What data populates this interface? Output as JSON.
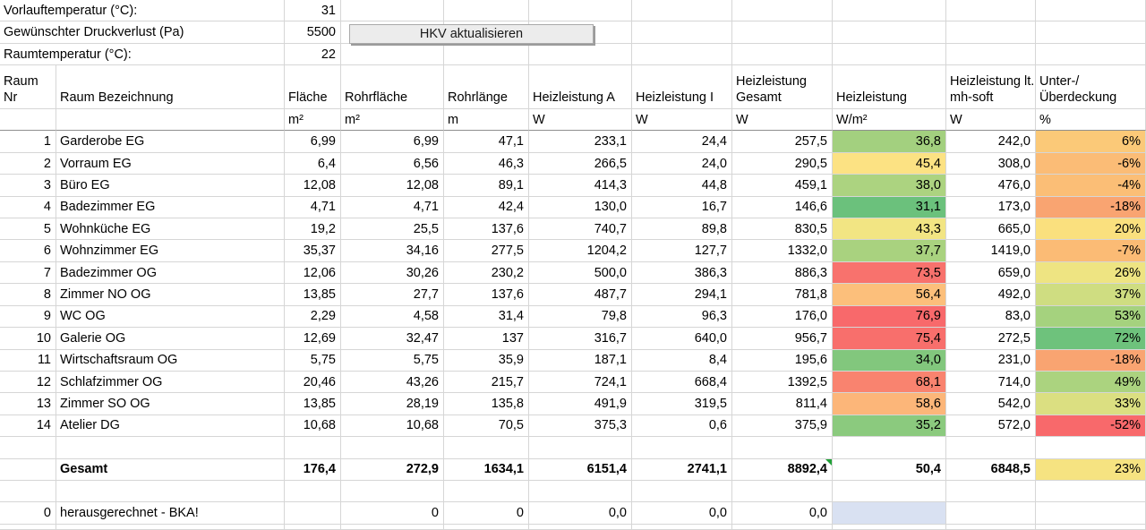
{
  "params": {
    "rows": [
      {
        "label": "Vorlauftemperatur (°C):",
        "value": "31"
      },
      {
        "label": "Gewünschter Druckverlust (Pa)",
        "value": "5500"
      },
      {
        "label": "Raumtemperatur (°C):",
        "value": "22"
      }
    ],
    "button_label": "HKV aktualisieren"
  },
  "table": {
    "columns": [
      {
        "label": "RaumNr",
        "unit": ""
      },
      {
        "label": "Raum Bezeichnung",
        "unit": ""
      },
      {
        "label": "Fläche",
        "unit": "m²"
      },
      {
        "label": "Rohrfläche",
        "unit": "m²"
      },
      {
        "label": "Rohrlänge",
        "unit": "m"
      },
      {
        "label": "Heizleistung A",
        "unit": "W"
      },
      {
        "label": "Heizleistung I",
        "unit": "W"
      },
      {
        "label": "Heizleistung Gesamt",
        "unit": "W"
      },
      {
        "label": "Heizleistung",
        "unit": "W/m²"
      },
      {
        "label": "Heizleistung lt. mh-soft",
        "unit": "W"
      },
      {
        "label": "Unter-/Überdeckung",
        "unit": "%"
      }
    ],
    "rows": [
      {
        "nr": "1",
        "name": "Garderobe EG",
        "flaeche": "6,99",
        "rohrflaeche": "6,99",
        "rohrlaenge": "47,1",
        "hl_a": "233,1",
        "hl_i": "24,4",
        "hl_ges": "257,5",
        "wm2": "36,8",
        "wm2_bg": "#A3D07F",
        "mhsoft": "242,0",
        "pct": "6%",
        "pct_bg": "#FBC978"
      },
      {
        "nr": "2",
        "name": "Vorraum EG",
        "flaeche": "6,4",
        "rohrflaeche": "6,56",
        "rohrlaenge": "46,3",
        "hl_a": "266,5",
        "hl_i": "24,0",
        "hl_ges": "290,5",
        "wm2": "45,4",
        "wm2_bg": "#FCE283",
        "mhsoft": "308,0",
        "pct": "-6%",
        "pct_bg": "#FBBC76"
      },
      {
        "nr": "3",
        "name": "Büro EG",
        "flaeche": "12,08",
        "rohrflaeche": "12,08",
        "rohrlaenge": "89,1",
        "hl_a": "414,3",
        "hl_i": "44,8",
        "hl_ges": "459,1",
        "wm2": "38,0",
        "wm2_bg": "#ACD380",
        "mhsoft": "476,0",
        "pct": "-4%",
        "pct_bg": "#FBBE76"
      },
      {
        "nr": "4",
        "name": "Badezimmer EG",
        "flaeche": "4,71",
        "rohrflaeche": "4,71",
        "rohrlaenge": "42,4",
        "hl_a": "130,0",
        "hl_i": "16,7",
        "hl_ges": "146,6",
        "wm2": "31,1",
        "wm2_bg": "#6BC17C",
        "mhsoft": "173,0",
        "pct": "-18%",
        "pct_bg": "#F9A471"
      },
      {
        "nr": "5",
        "name": "Wohnküche EG",
        "flaeche": "19,2",
        "rohrflaeche": "25,5",
        "rohrlaenge": "137,6",
        "hl_a": "740,7",
        "hl_i": "89,8",
        "hl_ges": "830,5",
        "wm2": "43,3",
        "wm2_bg": "#F2E583",
        "mhsoft": "665,0",
        "pct": "20%",
        "pct_bg": "#FAE07E"
      },
      {
        "nr": "6",
        "name": "Wohnzimmer EG",
        "flaeche": "35,37",
        "rohrflaeche": "34,16",
        "rohrlaenge": "277,5",
        "hl_a": "1204,2",
        "hl_i": "127,7",
        "hl_ges": "1332,0",
        "wm2": "37,7",
        "wm2_bg": "#A9D27F",
        "mhsoft": "1419,0",
        "pct": "-7%",
        "pct_bg": "#FBBB75"
      },
      {
        "nr": "7",
        "name": "Badezimmer OG",
        "flaeche": "12,06",
        "rohrflaeche": "30,26",
        "rohrlaenge": "230,2",
        "hl_a": "500,0",
        "hl_i": "386,3",
        "hl_ges": "886,3",
        "wm2": "73,5",
        "wm2_bg": "#F8726D",
        "mhsoft": "659,0",
        "pct": "26%",
        "pct_bg": "#EEE482"
      },
      {
        "nr": "8",
        "name": "Zimmer NO OG",
        "flaeche": "13,85",
        "rohrflaeche": "27,7",
        "rohrlaenge": "137,6",
        "hl_a": "487,7",
        "hl_i": "294,1",
        "hl_ges": "781,8",
        "wm2": "56,4",
        "wm2_bg": "#FCBF7B",
        "mhsoft": "492,0",
        "pct": "37%",
        "pct_bg": "#CFDD81"
      },
      {
        "nr": "9",
        "name": "WC OG",
        "flaeche": "2,29",
        "rohrflaeche": "4,58",
        "rohrlaenge": "31,4",
        "hl_a": "79,8",
        "hl_i": "96,3",
        "hl_ges": "176,0",
        "wm2": "76,9",
        "wm2_bg": "#F8696B",
        "mhsoft": "83,0",
        "pct": "53%",
        "pct_bg": "#A5D27E"
      },
      {
        "nr": "10",
        "name": "Galerie OG",
        "flaeche": "12,69",
        "rohrflaeche": "32,47",
        "rohrlaenge": "137",
        "hl_a": "316,7",
        "hl_i": "640,0",
        "hl_ges": "956,7",
        "wm2": "75,4",
        "wm2_bg": "#F86F6C",
        "mhsoft": "272,5",
        "pct": "72%",
        "pct_bg": "#6EC27C"
      },
      {
        "nr": "11",
        "name": "Wirtschaftsraum OG",
        "flaeche": "5,75",
        "rohrflaeche": "5,75",
        "rohrlaenge": "35,9",
        "hl_a": "187,1",
        "hl_i": "8,4",
        "hl_ges": "195,6",
        "wm2": "34,0",
        "wm2_bg": "#82C77D",
        "mhsoft": "231,0",
        "pct": "-18%",
        "pct_bg": "#F9A471"
      },
      {
        "nr": "12",
        "name": "Schlafzimmer OG",
        "flaeche": "20,46",
        "rohrflaeche": "43,26",
        "rohrlaenge": "215,7",
        "hl_a": "724,1",
        "hl_i": "668,4",
        "hl_ges": "1392,5",
        "wm2": "68,1",
        "wm2_bg": "#F9836F",
        "mhsoft": "714,0",
        "pct": "49%",
        "pct_bg": "#ABD37F"
      },
      {
        "nr": "13",
        "name": "Zimmer SO OG",
        "flaeche": "13,85",
        "rohrflaeche": "28,19",
        "rohrlaenge": "135,8",
        "hl_a": "491,9",
        "hl_i": "319,5",
        "hl_ges": "811,4",
        "wm2": "58,6",
        "wm2_bg": "#FCB679",
        "mhsoft": "542,0",
        "pct": "33%",
        "pct_bg": "#DBDF81"
      },
      {
        "nr": "14",
        "name": "Atelier DG",
        "flaeche": "10,68",
        "rohrflaeche": "10,68",
        "rohrlaenge": "70,5",
        "hl_a": "375,3",
        "hl_i": "0,6",
        "hl_ges": "375,9",
        "wm2": "35,2",
        "wm2_bg": "#8BCA7E",
        "mhsoft": "572,0",
        "pct": "-52%",
        "pct_bg": "#F8696B"
      }
    ],
    "gesamt": {
      "label": "Gesamt",
      "flaeche": "176,4",
      "rohrflaeche": "272,9",
      "rohrlaenge": "1634,1",
      "hl_a": "6151,4",
      "hl_i": "2741,1",
      "hl_ges": "8892,4",
      "wm2": "50,4",
      "mhsoft": "6848,5",
      "pct": "23%",
      "pct_bg": "#F6E381"
    },
    "extra": {
      "nr": "0",
      "label": "herausgerechnet - BKA!",
      "rohrflaeche": "0",
      "rohrlaenge": "0",
      "hl_a": "0,0",
      "hl_i": "0,0",
      "hl_ges": "0,0",
      "selected_bg": "#D9E1F2"
    }
  },
  "colors": {
    "gridline": "#D6D6D6",
    "units_border": "#8F8F8F",
    "error_flag_green": "#21A038",
    "selection_fill": "#D9E1F2",
    "scale_red": "#F8696B",
    "scale_yellow": "#FFEB84",
    "scale_green": "#63BE7B"
  }
}
